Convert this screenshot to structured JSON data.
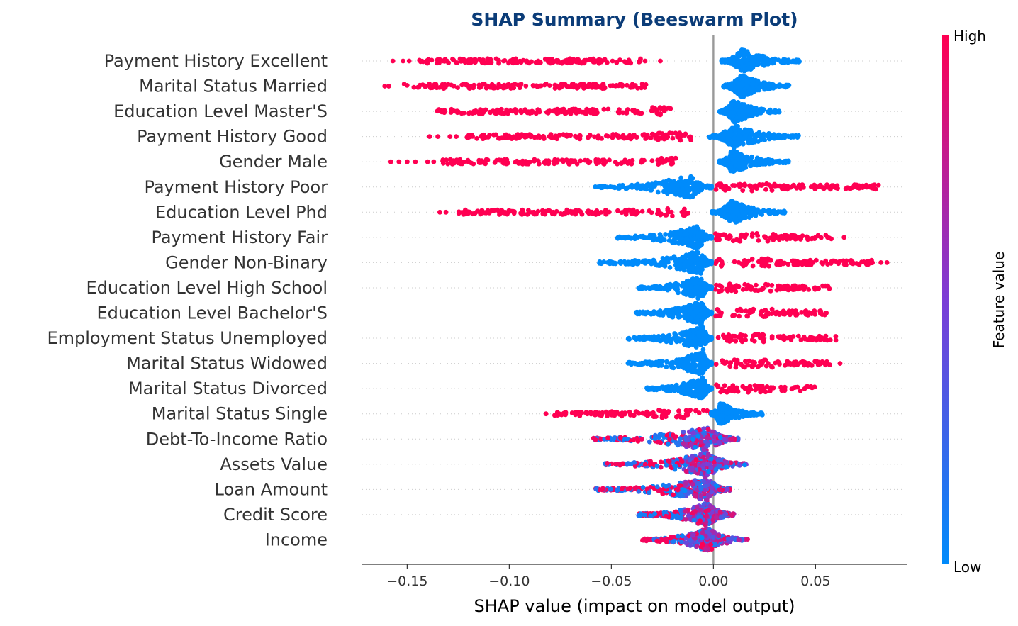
{
  "chart_data": {
    "type": "scatter",
    "subtype": "beeswarm",
    "title": "SHAP Summary (Beeswarm Plot)",
    "xlabel": "SHAP value (impact on model output)",
    "xlim": [
      -0.172,
      0.095
    ],
    "xticks": [
      {
        "value": -0.15,
        "label": "−0.15"
      },
      {
        "value": -0.1,
        "label": "−0.10"
      },
      {
        "value": -0.05,
        "label": "−0.05"
      },
      {
        "value": 0.0,
        "label": "0.00"
      },
      {
        "value": 0.05,
        "label": "0.05"
      }
    ],
    "zero_line": 0,
    "colorbar": {
      "title": "Feature value",
      "high_label": "High",
      "low_label": "Low",
      "high_color": "#ff0052",
      "mid_color": "#7b3dd6",
      "low_color": "#008bfb"
    },
    "features": [
      {
        "name": "Payment History Excellent",
        "kind": "binary",
        "high": {
          "min": -0.157,
          "max": -0.025,
          "core": [
            -0.145,
            -0.033
          ],
          "outliers": [
            -0.157,
            -0.152,
            -0.149,
            -0.026
          ]
        },
        "low": {
          "min": 0.004,
          "max": 0.043,
          "peak": 0.014
        }
      },
      {
        "name": "Marital Status Married",
        "kind": "binary",
        "high": {
          "min": -0.161,
          "max": -0.032,
          "core": [
            -0.152,
            -0.033
          ],
          "outliers": [
            -0.161,
            -0.159
          ]
        },
        "low": {
          "min": 0.004,
          "max": 0.037,
          "peak": 0.014
        }
      },
      {
        "name": "Education Level Master'S",
        "kind": "binary",
        "high": {
          "min": -0.137,
          "max": -0.02,
          "core": [
            -0.136,
            -0.021
          ],
          "outliers": []
        },
        "low": {
          "min": 0.003,
          "max": 0.033,
          "peak": 0.01
        }
      },
      {
        "name": "Payment History Good",
        "kind": "binary",
        "high": {
          "min": -0.139,
          "max": -0.01,
          "core": [
            -0.121,
            -0.011
          ],
          "outliers": [
            -0.139,
            -0.135,
            -0.129,
            -0.126
          ]
        },
        "low": {
          "min": -0.002,
          "max": 0.042,
          "peak": 0.01
        }
      },
      {
        "name": "Gender Male",
        "kind": "binary",
        "high": {
          "min": -0.158,
          "max": -0.017,
          "core": [
            -0.133,
            -0.018
          ],
          "outliers": [
            -0.158,
            -0.154,
            -0.15,
            -0.146,
            -0.14,
            -0.137
          ]
        },
        "low": {
          "min": 0.003,
          "max": 0.037,
          "peak": 0.009
        }
      },
      {
        "name": "Payment History Poor",
        "kind": "binary",
        "high": {
          "min": 0.001,
          "max": 0.084,
          "core": [
            0.001,
            0.083
          ],
          "outliers": []
        },
        "low": {
          "min": -0.058,
          "max": -0.001,
          "peak": -0.011
        }
      },
      {
        "name": "Education Level Phd",
        "kind": "binary",
        "high": {
          "min": -0.134,
          "max": -0.011,
          "core": [
            -0.125,
            -0.012
          ],
          "outliers": [
            -0.134,
            -0.131
          ]
        },
        "low": {
          "min": -0.001,
          "max": 0.035,
          "peak": 0.009
        }
      },
      {
        "name": "Payment History Fair",
        "kind": "binary",
        "high": {
          "min": 0.001,
          "max": 0.064,
          "core": [
            0.001,
            0.058
          ],
          "outliers": [
            0.064
          ]
        },
        "low": {
          "min": -0.047,
          "max": -0.001,
          "peak": -0.007
        }
      },
      {
        "name": "Gender Non-Binary",
        "kind": "binary",
        "high": {
          "min": 0.001,
          "max": 0.085,
          "core": [
            0.001,
            0.078
          ],
          "outliers": [
            0.082,
            0.085
          ]
        },
        "low": {
          "min": -0.056,
          "max": -0.001,
          "peak": -0.006
        }
      },
      {
        "name": "Education Level High School",
        "kind": "binary",
        "high": {
          "min": 0.001,
          "max": 0.057,
          "core": [
            0.001,
            0.057
          ],
          "outliers": []
        },
        "low": {
          "min": -0.037,
          "max": -0.001,
          "peak": -0.006
        }
      },
      {
        "name": "Education Level Bachelor'S",
        "kind": "binary",
        "high": {
          "min": 0.001,
          "max": 0.057,
          "core": [
            0.001,
            0.057
          ],
          "outliers": []
        },
        "low": {
          "min": -0.038,
          "max": -0.001,
          "peak": -0.006
        }
      },
      {
        "name": "Employment Status Unemployed",
        "kind": "binary",
        "high": {
          "min": 0.001,
          "max": 0.06,
          "core": [
            0.001,
            0.06
          ],
          "outliers": []
        },
        "low": {
          "min": -0.043,
          "max": -0.001,
          "peak": -0.005
        }
      },
      {
        "name": "Marital Status Widowed",
        "kind": "binary",
        "high": {
          "min": 0.001,
          "max": 0.062,
          "core": [
            0.001,
            0.057
          ],
          "outliers": [
            0.062
          ]
        },
        "low": {
          "min": -0.042,
          "max": -0.001,
          "peak": -0.005
        }
      },
      {
        "name": "Marital Status Divorced",
        "kind": "binary",
        "high": {
          "min": 0.001,
          "max": 0.05,
          "core": [
            0.001,
            0.05
          ],
          "outliers": []
        },
        "low": {
          "min": -0.033,
          "max": -0.001,
          "peak": -0.005
        }
      },
      {
        "name": "Marital Status Single",
        "kind": "binary",
        "high": {
          "min": -0.082,
          "max": -0.001,
          "core": [
            -0.078,
            -0.001
          ],
          "outliers": [
            -0.082
          ]
        },
        "low": {
          "min": -0.001,
          "max": 0.024,
          "peak": 0.003
        }
      },
      {
        "name": "Debt-To-Income Ratio",
        "kind": "continuous",
        "min": -0.059,
        "max": 0.012,
        "peak": -0.003
      },
      {
        "name": "Assets Value",
        "kind": "continuous",
        "min": -0.053,
        "max": 0.016,
        "peak": -0.003
      },
      {
        "name": "Loan Amount",
        "kind": "continuous",
        "min": -0.058,
        "max": 0.008,
        "peak": -0.003
      },
      {
        "name": "Credit Score",
        "kind": "continuous",
        "min": -0.037,
        "max": 0.01,
        "peak": -0.003
      },
      {
        "name": "Income",
        "kind": "continuous",
        "min": -0.035,
        "max": 0.017,
        "peak": -0.003
      }
    ]
  }
}
